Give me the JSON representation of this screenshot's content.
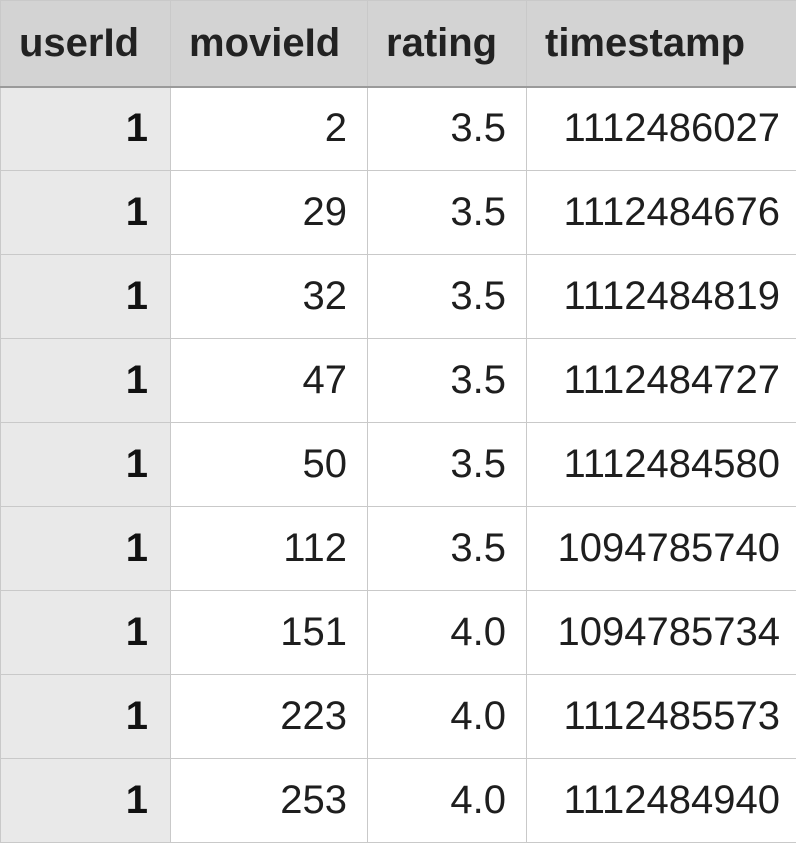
{
  "table": {
    "columns": [
      "userId",
      "movieId",
      "rating",
      "timestamp"
    ],
    "rows": [
      [
        "1",
        "2",
        "3.5",
        "1112486027"
      ],
      [
        "1",
        "29",
        "3.5",
        "1112484676"
      ],
      [
        "1",
        "32",
        "3.5",
        "1112484819"
      ],
      [
        "1",
        "47",
        "3.5",
        "1112484727"
      ],
      [
        "1",
        "50",
        "3.5",
        "1112484580"
      ],
      [
        "1",
        "112",
        "3.5",
        "1094785740"
      ],
      [
        "1",
        "151",
        "4.0",
        "1094785734"
      ],
      [
        "1",
        "223",
        "4.0",
        "1112485573"
      ],
      [
        "1",
        "253",
        "4.0",
        "1112484940"
      ]
    ]
  }
}
